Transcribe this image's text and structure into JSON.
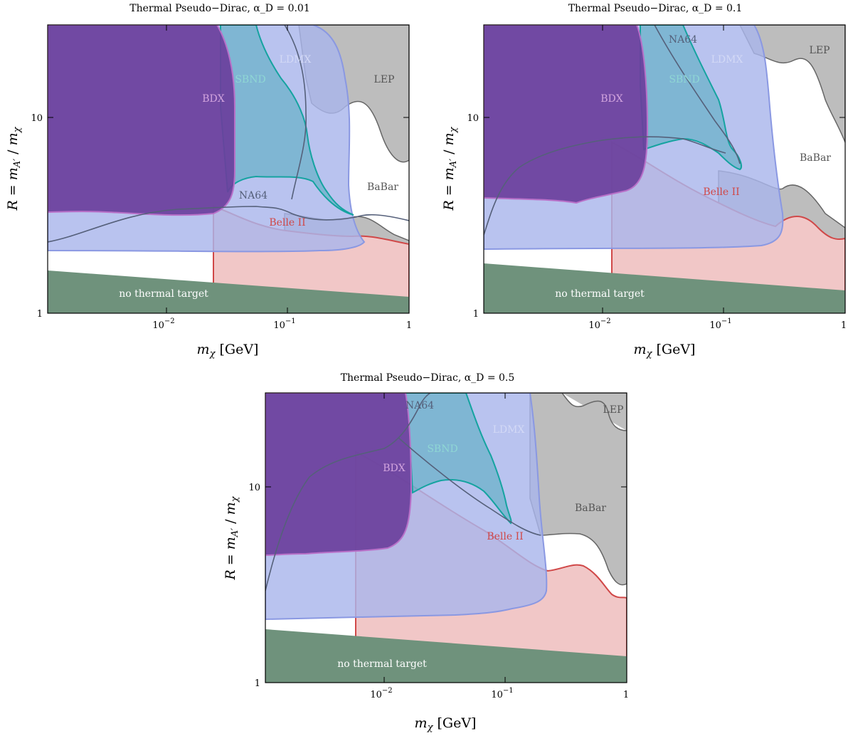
{
  "figure": {
    "x_label": "m_χ [GeV]",
    "y_label": "R = m_A' / m_χ"
  },
  "panels": [
    {
      "title": "Thermal Pseudo−Dirac, α_D = 0.01"
    },
    {
      "title": "Thermal Pseudo−Dirac, α_D = 0.1"
    },
    {
      "title": "Thermal Pseudo−Dirac, α_D = 0.5"
    }
  ],
  "colors": {
    "dark_purple": "#6a3f9c",
    "bdx_magenta": "#b870c8",
    "sbnd_teal": "#15a3a0",
    "ldmx_blue": "#a8b4ea",
    "ldmx_line": "#8a98e2",
    "lep_grey": "#a5a5a5",
    "belle_red": "#d04848",
    "belle_fill": "#f1c7c7",
    "na64_line": "#55607a",
    "thermal_green": "#6f927c"
  },
  "chart_data": [
    {
      "type": "area",
      "title": "Thermal Pseudo−Dirac, α_D = 0.01",
      "xlabel": "m_χ [GeV]",
      "ylabel": "R = m_A' / m_χ",
      "xscale": "log",
      "yscale": "log",
      "xlim": [
        0.0012,
        1
      ],
      "ylim": [
        1,
        25
      ],
      "x_tick_labels": [
        "10^-2",
        "10^-1",
        "1"
      ],
      "y_tick_labels": [
        "1",
        "10"
      ],
      "region_labels": [
        "BDX",
        "SBND",
        "LDMX",
        "LEP",
        "BaBar",
        "NA64",
        "Belle II",
        "no thermal target"
      ],
      "series": [
        {
          "name": "no thermal target",
          "x": [
            0.0012,
            1
          ],
          "y_upper": [
            1.72,
            1.28
          ]
        },
        {
          "name": "LDMX",
          "x": [
            0.0012,
            0.005,
            0.03,
            0.1,
            0.2,
            0.28,
            0.3,
            0.32,
            0.33,
            0.3,
            0.25,
            0.15,
            0.12,
            0.1
          ],
          "y": [
            2.2,
            2.2,
            2.22,
            2.25,
            2.3,
            2.5,
            3.0,
            5.0,
            10.0,
            15.0,
            19.0,
            22.0,
            24.0,
            25.0
          ]
        },
        {
          "name": "BDX",
          "x": [
            0.0012,
            0.0025,
            0.005,
            0.01,
            0.02,
            0.028,
            0.03,
            0.03,
            0.028,
            0.025
          ],
          "y": [
            3.6,
            3.55,
            3.55,
            3.5,
            3.45,
            3.5,
            4.0,
            10.0,
            18.0,
            25.0
          ]
        },
        {
          "name": "SBND",
          "x": [
            0.035,
            0.05,
            0.07,
            0.1,
            0.15,
            0.22,
            0.24,
            0.2,
            0.12,
            0.07,
            0.055,
            0.045
          ],
          "y": [
            4.5,
            5.0,
            5.2,
            5.1,
            5.0,
            3.5,
            3.3,
            4.5,
            8.0,
            14.0,
            20.0,
            25.0
          ]
        },
        {
          "name": "Belle II",
          "x": [
            0.03,
            0.05,
            0.1,
            0.15,
            0.2,
            0.3,
            0.4,
            0.6,
            1.0
          ],
          "y": [
            3.8,
            3.3,
            2.9,
            2.7,
            2.55,
            2.5,
            2.48,
            2.4,
            2.35
          ]
        },
        {
          "name": "BaBar / LEP",
          "x": [
            0.1,
            0.15,
            0.2,
            0.26,
            0.3,
            0.35,
            0.4,
            0.5,
            0.6,
            0.7,
            0.85,
            1.0
          ],
          "y": [
            3.7,
            3.5,
            3.3,
            3.2,
            3.3,
            3.6,
            3.6,
            3.2,
            2.9,
            2.7,
            2.6,
            2.55
          ]
        },
        {
          "name": "NA64",
          "x": [
            0.0012,
            0.003,
            0.01,
            0.02,
            0.04,
            0.07,
            0.1,
            0.15,
            0.25
          ],
          "y": [
            2.3,
            2.6,
            3.2,
            3.5,
            3.4,
            3.3,
            3.3,
            3.4,
            3.6
          ]
        }
      ]
    },
    {
      "type": "area",
      "title": "Thermal Pseudo−Dirac, α_D = 0.1",
      "xlabel": "m_χ [GeV]",
      "ylabel": "R = m_A' / m_χ",
      "xscale": "log",
      "yscale": "log",
      "xlim": [
        0.0012,
        1
      ],
      "ylim": [
        1,
        25
      ],
      "x_tick_labels": [
        "10^-2",
        "10^-1",
        "1"
      ],
      "y_tick_labels": [
        "1",
        "10"
      ],
      "region_labels": [
        "NA64",
        "LDMX",
        "SBND",
        "BDX",
        "LEP",
        "BaBar",
        "Belle II",
        "no thermal target"
      ],
      "series": [
        {
          "name": "no thermal target",
          "x": [
            0.0012,
            1
          ],
          "y_upper": [
            1.75,
            1.3
          ]
        },
        {
          "name": "LDMX",
          "x": [
            0.0012,
            0.005,
            0.03,
            0.1,
            0.2,
            0.28,
            0.3,
            0.32,
            0.32,
            0.3,
            0.25,
            0.15
          ],
          "y": [
            2.2,
            2.2,
            2.2,
            2.25,
            2.3,
            2.5,
            3.0,
            5.0,
            10.0,
            15.0,
            20.0,
            25.0
          ]
        },
        {
          "name": "BDX",
          "x": [
            0.0012,
            0.0025,
            0.006,
            0.012,
            0.018,
            0.022,
            0.024,
            0.025,
            0.025
          ],
          "y": [
            4.5,
            4.2,
            4.0,
            4.1,
            4.5,
            6.0,
            8.0,
            15.0,
            25.0
          ]
        },
        {
          "name": "SBND",
          "x": [
            0.025,
            0.04,
            0.06,
            0.08,
            0.1,
            0.15,
            0.13,
            0.1,
            0.08,
            0.06,
            0.05
          ],
          "y": [
            8.0,
            9.0,
            9.5,
            9.0,
            8.5,
            5.0,
            6.5,
            10.0,
            14.0,
            20.0,
            25.0
          ]
        },
        {
          "name": "Belle II",
          "x": [
            0.0018,
            0.01,
            0.02,
            0.04,
            0.08,
            0.15,
            0.25,
            0.4,
            0.6,
            1.0
          ],
          "y": [
            10.0,
            9.5,
            8.0,
            5.5,
            4.0,
            3.2,
            2.9,
            2.9,
            2.6,
            2.5
          ]
        },
        {
          "name": "BaBar / LEP",
          "x": [
            0.1,
            0.2,
            0.3,
            0.35,
            0.4,
            0.5,
            0.6,
            0.7,
            1.0
          ],
          "y": [
            4.0,
            3.6,
            3.4,
            3.6,
            3.8,
            3.4,
            3.0,
            2.7,
            2.6
          ]
        },
        {
          "name": "NA64",
          "x": [
            0.0012,
            0.0025,
            0.006,
            0.012,
            0.02,
            0.04,
            0.08,
            0.15,
            0.3
          ],
          "y": [
            2.5,
            5.0,
            8.0,
            9.5,
            10.0,
            9.5,
            7.5,
            5.0,
            3.5
          ]
        }
      ]
    },
    {
      "type": "area",
      "title": "Thermal Pseudo−Dirac, α_D = 0.5",
      "xlabel": "m_χ [GeV]",
      "ylabel": "R = m_A' / m_χ",
      "xscale": "log",
      "yscale": "log",
      "xlim": [
        0.0012,
        1
      ],
      "ylim": [
        1,
        25
      ],
      "x_tick_labels": [
        "10^-2",
        "10^-1",
        "1"
      ],
      "y_tick_labels": [
        "1",
        "10"
      ],
      "region_labels": [
        "NA64",
        "LEP",
        "SBND",
        "LDMX",
        "BDX",
        "BaBar",
        "Belle II",
        "no thermal target"
      ],
      "series": [
        {
          "name": "no thermal target",
          "x": [
            0.0012,
            1
          ],
          "y_upper": [
            1.9,
            1.4
          ]
        },
        {
          "name": "LDMX",
          "x": [
            0.0012,
            0.005,
            0.03,
            0.1,
            0.2,
            0.25,
            0.26,
            0.25,
            0.22
          ],
          "y": [
            2.3,
            2.3,
            2.35,
            2.5,
            3.0,
            4.5,
            10.0,
            20.0,
            25.0
          ]
        },
        {
          "name": "BDX",
          "x": [
            0.0012,
            0.003,
            0.008,
            0.013,
            0.016,
            0.017,
            0.018,
            0.018
          ],
          "y": [
            5.0,
            4.8,
            5.0,
            5.5,
            7.0,
            9.0,
            15.0,
            25.0
          ]
        },
        {
          "name": "SBND",
          "x": [
            0.018,
            0.03,
            0.05,
            0.08,
            0.11,
            0.1,
            0.08,
            0.06,
            0.05
          ],
          "y": [
            9.5,
            11.0,
            11.0,
            9.0,
            6.5,
            8.0,
            12.0,
            18.0,
            25.0
          ]
        },
        {
          "name": "Belle II",
          "x": [
            0.007,
            0.015,
            0.03,
            0.06,
            0.1,
            0.2,
            0.3,
            0.45,
            0.6,
            0.8,
            1.0
          ],
          "y": [
            15.0,
            13.0,
            9.0,
            6.0,
            5.0,
            4.2,
            4.0,
            4.5,
            3.6,
            3.0,
            2.8
          ]
        },
        {
          "name": "BaBar / LEP",
          "x": [
            0.2,
            0.3,
            0.4,
            0.5,
            0.6,
            0.8,
            1.0
          ],
          "y": [
            6.0,
            6.0,
            5.5,
            6.0,
            5.0,
            4.0,
            3.5
          ]
        },
        {
          "name": "NA64",
          "x": [
            0.0012,
            0.002,
            0.004,
            0.008,
            0.015,
            0.03,
            0.05,
            0.1
          ],
          "y": [
            3.2,
            8.0,
            12.0,
            14.0,
            15.0,
            16.0,
            20.0,
            25.0
          ]
        }
      ]
    }
  ]
}
